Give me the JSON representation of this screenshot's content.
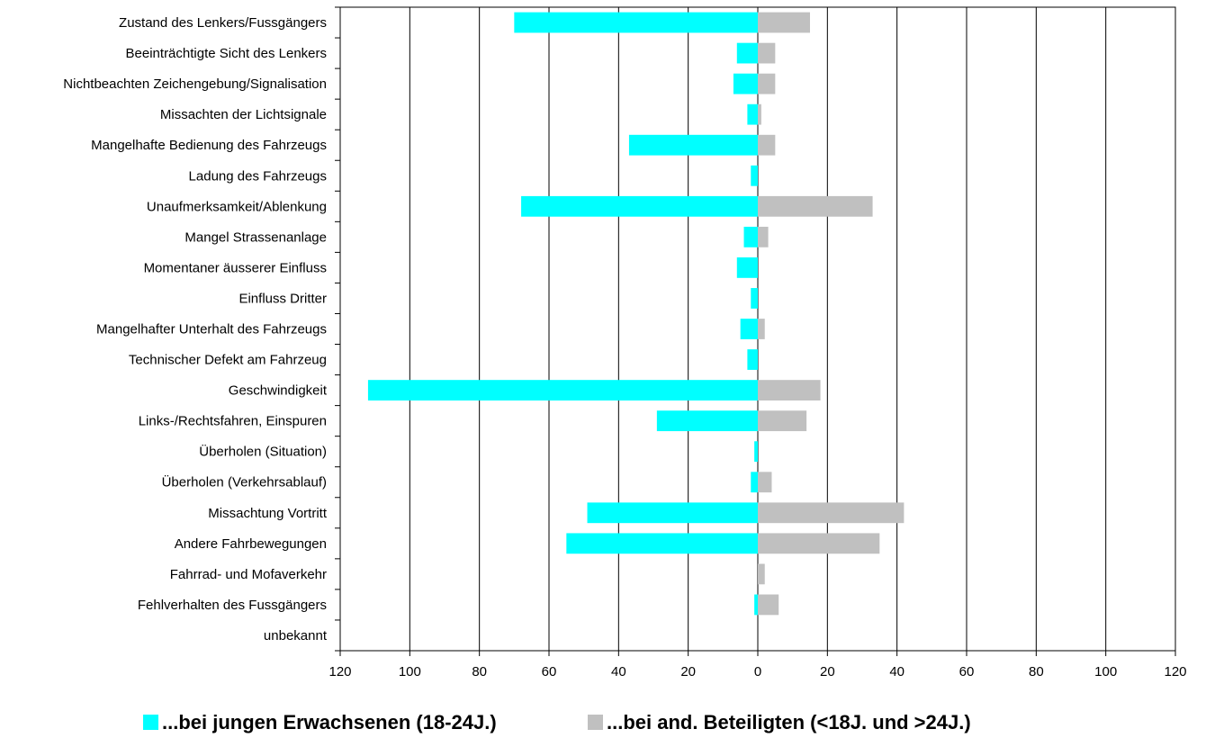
{
  "chart_data": {
    "type": "bar",
    "orientation": "horizontal",
    "layout": "back-to-back",
    "categories": [
      "Zustand des Lenkers/Fussgängers",
      "Beeinträchtigte Sicht des Lenkers",
      "Nichtbeachten Zeichengebung/Signalisation",
      "Missachten der Lichtsignale",
      "Mangelhafte Bedienung des Fahrzeugs",
      "Ladung des Fahrzeugs",
      "Unaufmerksamkeit/Ablenkung",
      "Mangel Strassenanlage",
      "Momentaner äusserer Einfluss",
      "Einfluss Dritter",
      "Mangelhafter Unterhalt des Fahrzeugs",
      "Technischer Defekt am Fahrzeug",
      "Geschwindigkeit",
      "Links-/Rechtsfahren, Einspuren",
      "Überholen (Situation)",
      "Überholen (Verkehrsablauf)",
      "Missachtung Vortritt",
      "Andere Fahrbewegungen",
      "Fahrrad- und Mofaverkehr",
      "Fehlverhalten des Fussgängers",
      "unbekannt"
    ],
    "series": [
      {
        "name": "...bei jungen Erwachsenen (18-24J.)",
        "color": "#00FFFF",
        "side": "left",
        "values": [
          70,
          6,
          7,
          3,
          37,
          2,
          68,
          4,
          6,
          2,
          5,
          3,
          112,
          29,
          1,
          2,
          49,
          55,
          0,
          1,
          0
        ]
      },
      {
        "name": "...bei and. Beteiligten (<18J. und >24J.)",
        "color": "#C0C0C0",
        "side": "right",
        "values": [
          15,
          5,
          5,
          1,
          5,
          0,
          33,
          3,
          0,
          0,
          2,
          0,
          18,
          14,
          0,
          4,
          42,
          35,
          2,
          6,
          0
        ]
      }
    ],
    "xlim": [
      -120,
      120
    ],
    "x_ticks": [
      -120,
      -100,
      -80,
      -60,
      -40,
      -20,
      0,
      20,
      40,
      60,
      80,
      100,
      120
    ],
    "x_tick_labels": [
      "120",
      "100",
      "80",
      "60",
      "40",
      "20",
      "0",
      "20",
      "40",
      "60",
      "80",
      "100",
      "120"
    ],
    "grid": true,
    "legend_position": "bottom",
    "title": "",
    "xlabel": "",
    "ylabel": ""
  }
}
